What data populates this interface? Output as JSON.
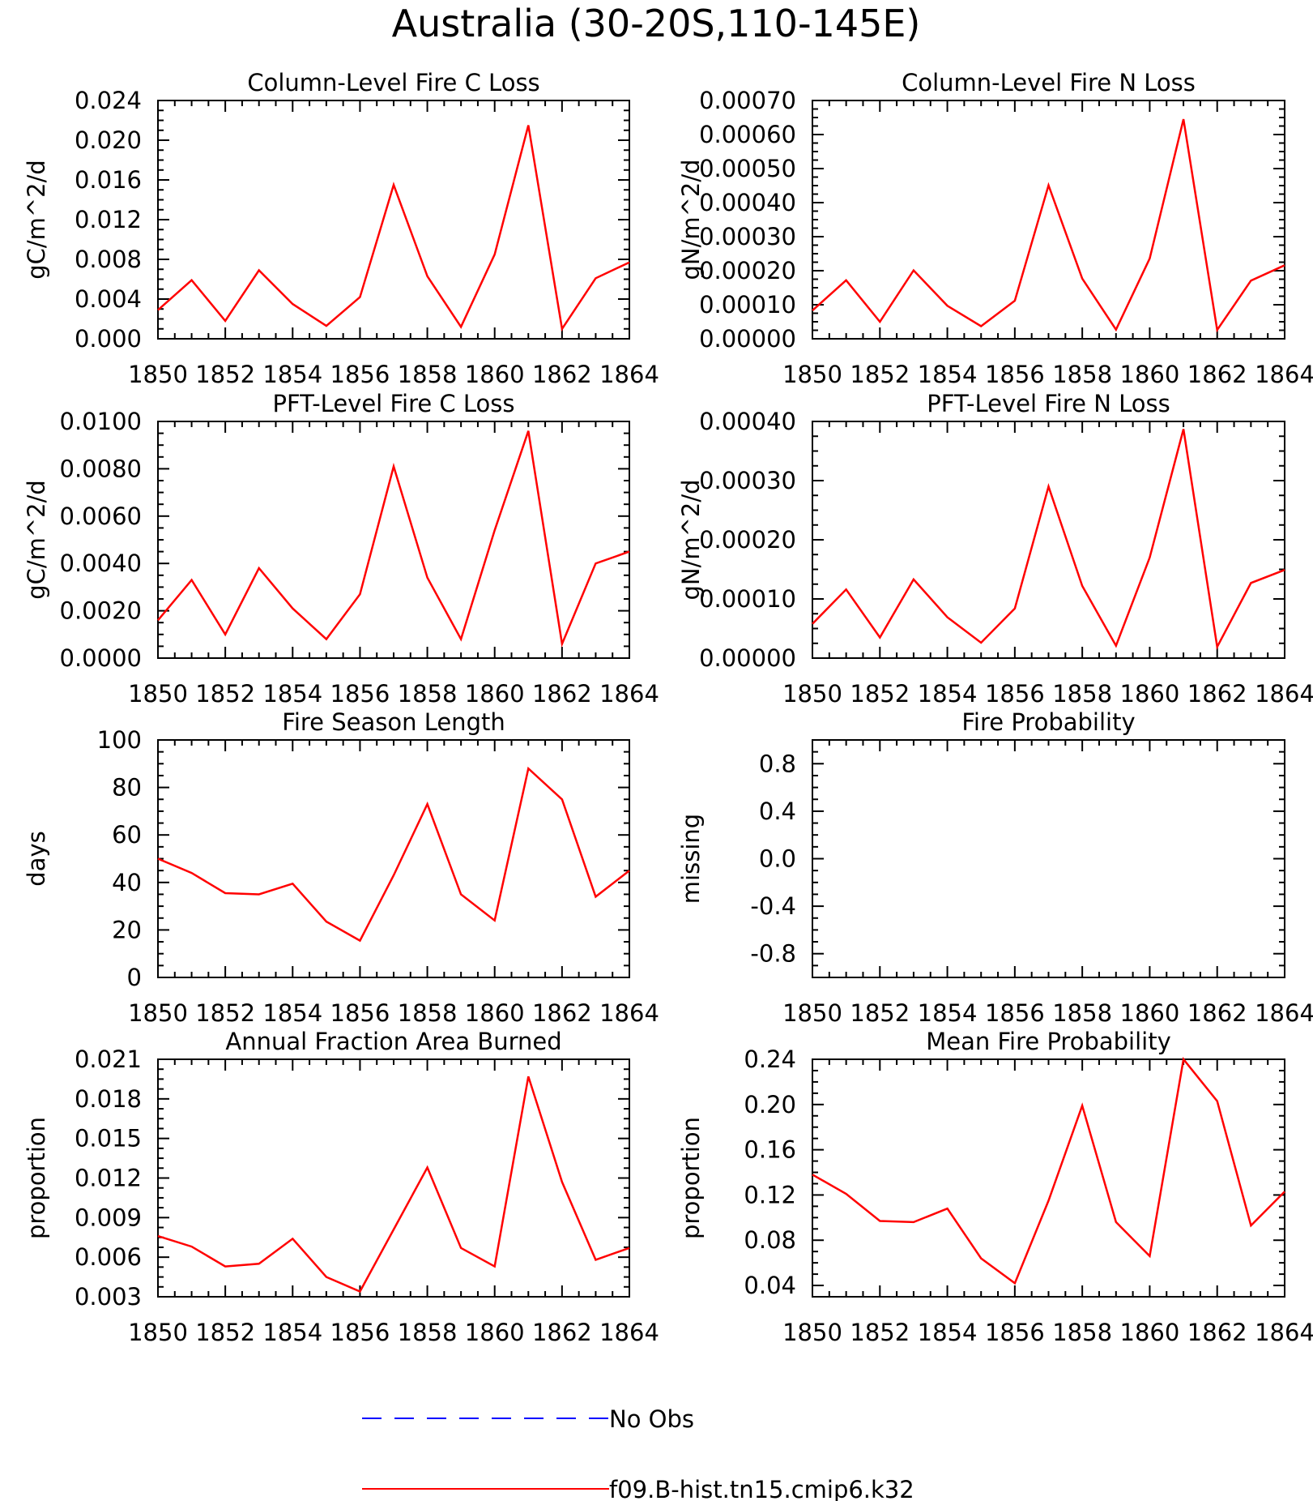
{
  "title": "Australia (30-20S,110-145E)",
  "colors": {
    "model": "#ff0000",
    "obs": "#0000ff",
    "axes": "#000000"
  },
  "legend": {
    "obs_label": "No Obs",
    "model_label": "f09.B-hist.tn15.cmip6.k32"
  },
  "chart_data": [
    {
      "type": "line",
      "title": "Column-Level Fire C Loss",
      "ylabel": "gC/m^2/d",
      "xlim": [
        1850,
        1864
      ],
      "ylim": [
        0,
        0.024
      ],
      "x_ticks": [
        "1850",
        "1852",
        "1854",
        "1856",
        "1858",
        "1860",
        "1862",
        "1864"
      ],
      "y_ticks": [
        "0.000",
        "0.004",
        "0.008",
        "0.012",
        "0.016",
        "0.020",
        "0.024"
      ],
      "x": [
        1850,
        1851,
        1852,
        1853,
        1854,
        1855,
        1856,
        1857,
        1858,
        1859,
        1860,
        1861,
        1862,
        1863,
        1864
      ],
      "series": [
        {
          "name": "f09.B-hist.tn15.cmip6.k32",
          "values": [
            0.0029,
            0.0059,
            0.0018,
            0.0069,
            0.0035,
            0.0013,
            0.0042,
            0.0155,
            0.0063,
            0.0012,
            0.0085,
            0.0215,
            0.001,
            0.0061,
            0.0077
          ]
        }
      ]
    },
    {
      "type": "line",
      "title": "Column-Level Fire N Loss",
      "ylabel": "gN/m^2/d",
      "xlim": [
        1850,
        1864
      ],
      "ylim": [
        0,
        0.0007
      ],
      "x_ticks": [
        "1850",
        "1852",
        "1854",
        "1856",
        "1858",
        "1860",
        "1862",
        "1864"
      ],
      "y_ticks": [
        "0.00000",
        "0.00010",
        "0.00020",
        "0.00030",
        "0.00040",
        "0.00050",
        "0.00060",
        "0.00070"
      ],
      "x": [
        1850,
        1851,
        1852,
        1853,
        1854,
        1855,
        1856,
        1857,
        1858,
        1859,
        1860,
        1861,
        1862,
        1863,
        1864
      ],
      "series": [
        {
          "name": "f09.B-hist.tn15.cmip6.k32",
          "values": [
            8.3e-05,
            0.000172,
            5e-05,
            0.000201,
            9.7e-05,
            3.7e-05,
            0.000112,
            0.000451,
            0.000177,
            2.7e-05,
            0.000236,
            0.000645,
            2.6e-05,
            0.000171,
            0.000216
          ]
        }
      ]
    },
    {
      "type": "line",
      "title": "PFT-Level Fire C Loss",
      "ylabel": "gC/m^2/d",
      "xlim": [
        1850,
        1864
      ],
      "ylim": [
        0,
        0.01
      ],
      "x_ticks": [
        "1850",
        "1852",
        "1854",
        "1856",
        "1858",
        "1860",
        "1862",
        "1864"
      ],
      "y_ticks": [
        "0.0000",
        "0.0020",
        "0.0040",
        "0.0060",
        "0.0080",
        "0.0100"
      ],
      "x": [
        1850,
        1851,
        1852,
        1853,
        1854,
        1855,
        1856,
        1857,
        1858,
        1859,
        1860,
        1861,
        1862,
        1863,
        1864
      ],
      "series": [
        {
          "name": "f09.B-hist.tn15.cmip6.k32",
          "values": [
            0.0016,
            0.0033,
            0.001,
            0.0038,
            0.0021,
            0.0008,
            0.0027,
            0.0081,
            0.0034,
            0.0008,
            0.0054,
            0.0096,
            0.0006,
            0.004,
            0.0045
          ]
        }
      ]
    },
    {
      "type": "line",
      "title": "PFT-Level Fire N Loss",
      "ylabel": "gN/m^2/d",
      "xlim": [
        1850,
        1864
      ],
      "ylim": [
        0,
        0.0004
      ],
      "x_ticks": [
        "1850",
        "1852",
        "1854",
        "1856",
        "1858",
        "1860",
        "1862",
        "1864"
      ],
      "y_ticks": [
        "0.00000",
        "0.00010",
        "0.00020",
        "0.00030",
        "0.00040"
      ],
      "x": [
        1850,
        1851,
        1852,
        1853,
        1854,
        1855,
        1856,
        1857,
        1858,
        1859,
        1860,
        1861,
        1862,
        1863,
        1864
      ],
      "series": [
        {
          "name": "f09.B-hist.tn15.cmip6.k32",
          "values": [
            5.8e-05,
            0.000116,
            3.5e-05,
            0.000133,
            6.9e-05,
            2.6e-05,
            8.4e-05,
            0.00029,
            0.000122,
            2.1e-05,
            0.00017,
            0.000387,
            1.9e-05,
            0.000127,
            0.000149
          ]
        }
      ]
    },
    {
      "type": "line",
      "title": "Fire Season Length",
      "ylabel": "days",
      "xlim": [
        1850,
        1864
      ],
      "ylim": [
        0,
        100
      ],
      "x_ticks": [
        "1850",
        "1852",
        "1854",
        "1856",
        "1858",
        "1860",
        "1862",
        "1864"
      ],
      "y_ticks": [
        "0",
        "20",
        "40",
        "60",
        "80",
        "100"
      ],
      "x": [
        1850,
        1851,
        1852,
        1853,
        1854,
        1855,
        1856,
        1857,
        1858,
        1859,
        1860,
        1861,
        1862,
        1863,
        1864
      ],
      "series": [
        {
          "name": "f09.B-hist.tn15.cmip6.k32",
          "values": [
            50,
            44,
            35.5,
            35,
            39.5,
            23.5,
            15.5,
            43,
            73,
            35,
            24,
            88,
            75,
            34,
            45
          ]
        }
      ]
    },
    {
      "type": "line",
      "title": "Fire Probability",
      "ylabel": "missing",
      "xlim": [
        1850,
        1864
      ],
      "ylim": [
        -1,
        1
      ],
      "x_ticks": [
        "1850",
        "1852",
        "1854",
        "1856",
        "1858",
        "1860",
        "1862",
        "1864"
      ],
      "y_ticks": [
        "-0.8",
        "-0.4",
        "0.0",
        "0.4",
        "0.8"
      ],
      "x": [],
      "series": []
    },
    {
      "type": "line",
      "title": "Annual Fraction Area Burned",
      "ylabel": "proportion",
      "xlim": [
        1850,
        1864
      ],
      "ylim": [
        0.003,
        0.021
      ],
      "x_ticks": [
        "1850",
        "1852",
        "1854",
        "1856",
        "1858",
        "1860",
        "1862",
        "1864"
      ],
      "y_ticks": [
        "0.003",
        "0.006",
        "0.009",
        "0.012",
        "0.015",
        "0.018",
        "0.021"
      ],
      "x": [
        1850,
        1851,
        1852,
        1853,
        1854,
        1855,
        1856,
        1857,
        1858,
        1859,
        1860,
        1861,
        1862,
        1863,
        1864
      ],
      "series": [
        {
          "name": "f09.B-hist.tn15.cmip6.k32",
          "values": [
            0.0076,
            0.0068,
            0.0053,
            0.0055,
            0.0074,
            0.0045,
            0.0034,
            0.0081,
            0.0128,
            0.0067,
            0.0053,
            0.0197,
            0.0117,
            0.0058,
            0.0067
          ]
        }
      ]
    },
    {
      "type": "line",
      "title": "Mean Fire Probability",
      "ylabel": "proportion",
      "xlim": [
        1850,
        1864
      ],
      "ylim": [
        0.03,
        0.24
      ],
      "x_ticks": [
        "1850",
        "1852",
        "1854",
        "1856",
        "1858",
        "1860",
        "1862",
        "1864"
      ],
      "y_ticks": [
        "0.04",
        "0.08",
        "0.12",
        "0.16",
        "0.20",
        "0.24"
      ],
      "x": [
        1850,
        1851,
        1852,
        1853,
        1854,
        1855,
        1856,
        1857,
        1858,
        1859,
        1860,
        1861,
        1862,
        1863,
        1864
      ],
      "series": [
        {
          "name": "f09.B-hist.tn15.cmip6.k32",
          "values": [
            0.138,
            0.121,
            0.097,
            0.096,
            0.108,
            0.064,
            0.042,
            0.115,
            0.199,
            0.096,
            0.066,
            0.24,
            0.203,
            0.093,
            0.123
          ]
        }
      ]
    }
  ]
}
